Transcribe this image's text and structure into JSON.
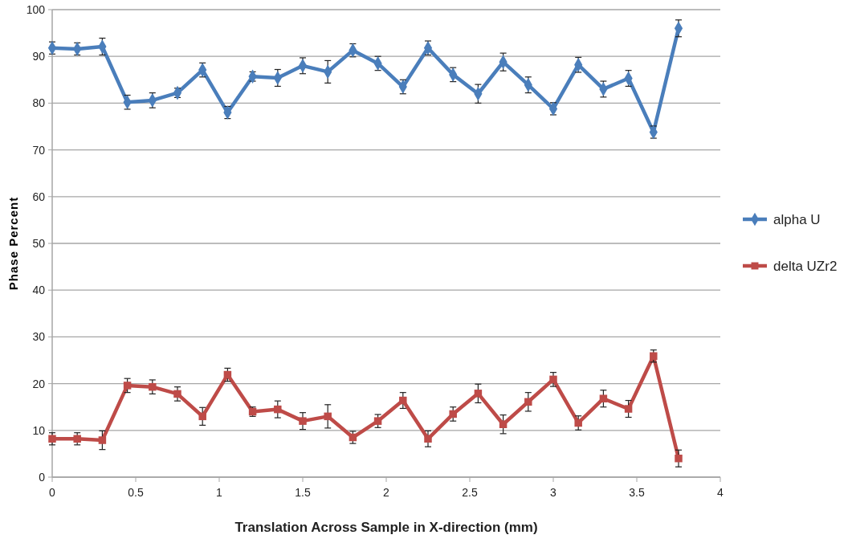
{
  "chart_data": {
    "type": "line",
    "xlabel": "Translation Across Sample in X-direction (mm)",
    "ylabel": "Phase Percent",
    "x": [
      0,
      0.15,
      0.3,
      0.45,
      0.6,
      0.75,
      0.9,
      1.05,
      1.2,
      1.35,
      1.5,
      1.65,
      1.8,
      1.95,
      2.1,
      2.25,
      2.4,
      2.55,
      2.7,
      2.85,
      3,
      3.15,
      3.3,
      3.45,
      3.6,
      3.75
    ],
    "series": [
      {
        "name": "alpha U",
        "color": "#4a7ebb",
        "marker": "diamond",
        "values": [
          91.8,
          91.6,
          92.1,
          80.2,
          80.6,
          82.2,
          87.1,
          78.0,
          85.7,
          85.4,
          88.0,
          86.7,
          91.3,
          88.5,
          83.5,
          91.8,
          86.1,
          82.0,
          88.8,
          83.9,
          78.8,
          88.2,
          83.0,
          85.3,
          73.8,
          96.0
        ],
        "errors": [
          1.3,
          1.3,
          1.8,
          1.5,
          1.6,
          1.0,
          1.5,
          1.3,
          1.0,
          1.8,
          1.7,
          2.4,
          1.4,
          1.5,
          1.5,
          1.5,
          1.5,
          2.0,
          1.9,
          1.7,
          1.3,
          1.6,
          1.7,
          1.7,
          1.3,
          1.8
        ]
      },
      {
        "name": "delta UZr2",
        "color": "#be4b48",
        "marker": "square",
        "values": [
          8.2,
          8.2,
          7.9,
          19.6,
          19.3,
          17.8,
          13.0,
          21.9,
          14.0,
          14.5,
          12.0,
          13.0,
          8.5,
          12.0,
          16.4,
          8.2,
          13.5,
          17.9,
          11.3,
          16.1,
          20.9,
          11.6,
          16.8,
          14.6,
          25.9,
          4.0
        ],
        "errors": [
          1.3,
          1.3,
          2.0,
          1.5,
          1.5,
          1.5,
          1.9,
          1.4,
          1.0,
          1.8,
          1.8,
          2.5,
          1.3,
          1.4,
          1.7,
          1.7,
          1.5,
          2.0,
          2.0,
          2.0,
          1.5,
          1.5,
          1.8,
          1.8,
          1.3,
          1.8
        ]
      }
    ],
    "xlim": [
      0,
      4
    ],
    "xticks": [
      0,
      0.5,
      1,
      1.5,
      2,
      2.5,
      3,
      3.5,
      4
    ],
    "ylim": [
      0,
      100
    ],
    "yticks": [
      0,
      10,
      20,
      30,
      40,
      50,
      60,
      70,
      80,
      90,
      100
    ],
    "grid": "y",
    "legend": "right",
    "line_style": "solid"
  }
}
